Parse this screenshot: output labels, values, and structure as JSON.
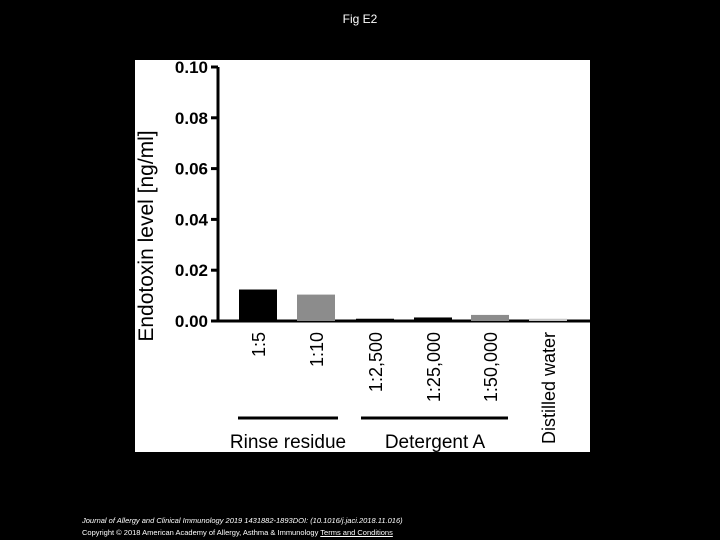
{
  "slide_title": "Fig E2",
  "chart_data": {
    "type": "bar",
    "y_label": "Endotoxin level [ng/ml]",
    "categories": [
      "1:5",
      "1:10",
      "1:2,500",
      "1:25,000",
      "1:50,000",
      "Distilled water"
    ],
    "values": [
      0.012,
      0.01,
      0.0005,
      0.001,
      0.002,
      0.0005
    ],
    "colors": [
      "#000000",
      "#8c8c8c",
      "#000000",
      "#000000",
      "#8c8c8c",
      "#c8c8c8"
    ],
    "ylim": [
      0,
      0.1
    ],
    "yticks": [
      {
        "value": 0,
        "label": "0.00"
      },
      {
        "value": 0.02,
        "label": "0.02"
      },
      {
        "value": 0.04,
        "label": "0.04"
      },
      {
        "value": 0.06,
        "label": "0.06"
      },
      {
        "value": 0.08,
        "label": "0.08"
      },
      {
        "value": 0.1,
        "label": "0.10"
      }
    ],
    "group_labels": [
      "Rinse residue",
      "Detergent A"
    ]
  },
  "footer": {
    "citation": "Journal of Allergy and Clinical Immunology 2019 1431882-1893DOI: (10.1016/j.jaci.2018.11.016)",
    "copyright": "Copyright © 2018 American Academy of Allergy, Asthma & Immunology",
    "link": "Terms and Conditions"
  }
}
